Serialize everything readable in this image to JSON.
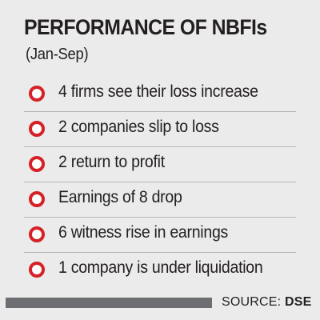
{
  "header": {
    "title": "PERFORMANCE OF NBFIs",
    "subtitle": "(Jan-Sep)"
  },
  "items": [
    {
      "text": "4 firms see their loss increase"
    },
    {
      "text": "2 companies slip to loss"
    },
    {
      "text": "2 return to profit"
    },
    {
      "text": "Earnings of 8 drop"
    },
    {
      "text": "6 witness rise in earnings"
    },
    {
      "text": "1 company is under liquidation"
    }
  ],
  "footer": {
    "source_label": "SOURCE:",
    "source_value": "DSE"
  },
  "colors": {
    "background": "#ebebeb",
    "bullet": "#d62127",
    "text": "#231f20",
    "footer_bar": "#6d6e71"
  }
}
